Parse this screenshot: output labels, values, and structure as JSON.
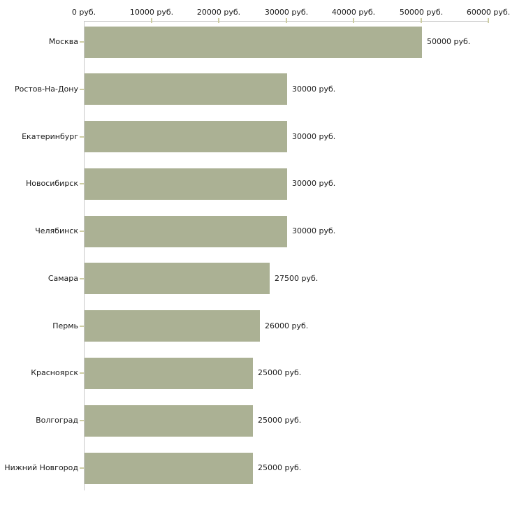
{
  "chart_data": {
    "type": "bar",
    "orientation": "horizontal",
    "title": "",
    "xlabel": "",
    "ylabel": "",
    "unit": "руб.",
    "grid": "off",
    "legend_position": "none",
    "categories": [
      "Москва",
      "Ростов-На-Дону",
      "Екатеринбург",
      "Новосибирск",
      "Челябинск",
      "Самара",
      "Пермь",
      "Красноярск",
      "Волгоград",
      "Нижний Новгород"
    ],
    "values": [
      50000,
      30000,
      30000,
      30000,
      30000,
      27500,
      26000,
      25000,
      25000,
      25000
    ],
    "value_labels": [
      "50000 руб.",
      "30000 руб.",
      "30000 руб.",
      "30000 руб.",
      "30000 руб.",
      "27500 руб.",
      "26000 руб.",
      "25000 руб.",
      "25000 руб.",
      "25000 руб."
    ],
    "xlim": [
      0,
      60000
    ],
    "x_ticks": [
      0,
      10000,
      20000,
      30000,
      40000,
      50000,
      60000
    ],
    "x_tick_labels": [
      "0 руб.",
      "10000 руб.",
      "20000 руб.",
      "30000 руб.",
      "40000 руб.",
      "50000 руб.",
      "60000 руб."
    ],
    "colors": {
      "bar": "#abb194",
      "axis_line": "#c9c9c9",
      "tick": "#cdcda2",
      "text": "#1a1a1a",
      "background": "#ffffff"
    }
  }
}
